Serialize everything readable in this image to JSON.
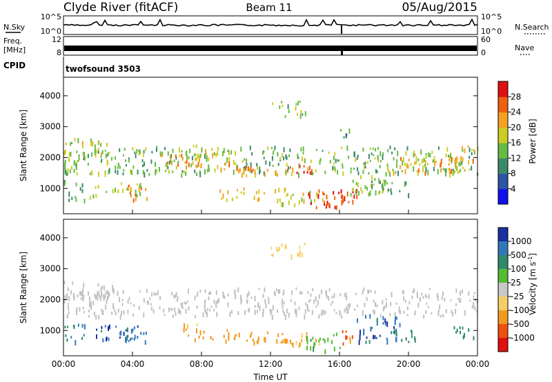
{
  "header": {
    "station": "Clyde River (fitACF)",
    "beam": "Beam 11",
    "date": "05/Aug/2015"
  },
  "strips": {
    "nsky_label": "N.Sky",
    "nsky_ticks": [
      "10^5",
      "10^0"
    ],
    "nsearch_label": "N.Search",
    "nsearch_ticks": [
      "10^5",
      "10^0"
    ],
    "freq_label_1": "Freq.",
    "freq_label_2": "[MHz]",
    "freq_ticks": [
      "12",
      "8"
    ],
    "nave_label": "Nave",
    "nave_ticks": [
      "60",
      "0"
    ],
    "cpid_label": "CPID",
    "cpid_value": "twofsound 3503"
  },
  "colors": {
    "power": [
      "#1010ee",
      "#2c55a8",
      "#3a8a6a",
      "#66bb44",
      "#cccc22",
      "#f5a020",
      "#ee6010",
      "#e01010"
    ],
    "velocity": [
      "#1a2fa0",
      "#3377bb",
      "#2f8a6a",
      "#55bb33",
      "#c8c8c8",
      "#f7cd66",
      "#f29a20",
      "#ee5010",
      "#e01010"
    ],
    "ground": "#c0c0c0"
  },
  "chart_data": [
    {
      "type": "heatmap",
      "panel": "power",
      "xlabel": "",
      "ylabel": "Slant Range [km]",
      "x_ticks": [
        "00:00",
        "04:00",
        "08:00",
        "12:00",
        "16:00",
        "20:00",
        "00:00"
      ],
      "xlim_hours": [
        0,
        24
      ],
      "ylim_km": [
        180,
        4600
      ],
      "y_ticks": [
        1000,
        2000,
        3000,
        4000
      ],
      "colorbar": {
        "label": "Power [dB]",
        "ticks": [
          4,
          8,
          12,
          16,
          20,
          24,
          28
        ],
        "range": [
          0,
          32
        ]
      },
      "bands": [
        {
          "t0": 0.0,
          "t1": 24.0,
          "r0": 1450,
          "r1": 2350,
          "level": 14
        },
        {
          "t0": 0.0,
          "t1": 3.0,
          "r0": 2050,
          "r1": 2600,
          "level": 17
        },
        {
          "t0": 0.0,
          "t1": 1.2,
          "r0": 600,
          "r1": 1250,
          "level": 12
        },
        {
          "t0": 1.5,
          "t1": 4.5,
          "r0": 700,
          "r1": 1150,
          "level": 16
        },
        {
          "t0": 3.2,
          "t1": 4.8,
          "r0": 600,
          "r1": 1100,
          "level": 23
        },
        {
          "t0": 5.5,
          "t1": 8.0,
          "r0": 1700,
          "r1": 2100,
          "level": 24
        },
        {
          "t0": 7.5,
          "t1": 9.0,
          "r0": 1900,
          "r1": 2400,
          "level": 18
        },
        {
          "t0": 9.0,
          "t1": 11.0,
          "r0": 1550,
          "r1": 1850,
          "level": 24
        },
        {
          "t0": 10.0,
          "t1": 12.5,
          "r0": 1400,
          "r1": 1750,
          "level": 20
        },
        {
          "t0": 12.5,
          "t1": 14.5,
          "r0": 1450,
          "r1": 1800,
          "level": 26
        },
        {
          "t0": 9.0,
          "t1": 13.0,
          "r0": 600,
          "r1": 1000,
          "level": 20
        },
        {
          "t0": 12.5,
          "t1": 15.0,
          "r0": 450,
          "r1": 900,
          "level": 18
        },
        {
          "t0": 14.0,
          "t1": 16.5,
          "r0": 280,
          "r1": 950,
          "level": 27
        },
        {
          "t0": 16.0,
          "t1": 17.0,
          "r0": 500,
          "r1": 1000,
          "level": 27
        },
        {
          "t0": 16.5,
          "t1": 19.0,
          "r0": 800,
          "r1": 1400,
          "level": 16
        },
        {
          "t0": 17.5,
          "t1": 20.0,
          "r0": 800,
          "r1": 1300,
          "level": 12
        },
        {
          "t0": 19.0,
          "t1": 24.0,
          "r0": 1500,
          "r1": 2000,
          "level": 22
        },
        {
          "t0": 20.0,
          "t1": 22.0,
          "r0": 1800,
          "r1": 2100,
          "level": 18
        },
        {
          "t0": 23.0,
          "t1": 24.0,
          "r0": 2200,
          "r1": 2500,
          "level": 19
        },
        {
          "t0": 12.0,
          "t1": 14.0,
          "r0": 3300,
          "r1": 3800,
          "level": 15
        },
        {
          "t0": 16.0,
          "t1": 16.6,
          "r0": 2600,
          "r1": 2900,
          "level": 11
        }
      ]
    },
    {
      "type": "heatmap",
      "panel": "velocity",
      "xlabel": "Time UT",
      "ylabel": "Slant Range [km]",
      "x_ticks": [
        "00:00",
        "04:00",
        "08:00",
        "12:00",
        "16:00",
        "20:00",
        "00:00"
      ],
      "xlim_hours": [
        0,
        24
      ],
      "ylim_km": [
        180,
        4600
      ],
      "y_ticks": [
        1000,
        2000,
        3000,
        4000
      ],
      "colorbar": {
        "label": "Velocity [m s^-1]",
        "ticks": [
          "1000",
          "500",
          "100",
          "25",
          "-25",
          "-100",
          "-500",
          "-1000"
        ]
      },
      "bands": [
        {
          "t0": 0.0,
          "t1": 24.0,
          "r0": 1450,
          "r1": 2350,
          "vel": 0
        },
        {
          "t0": 0.0,
          "t1": 3.0,
          "r0": 2050,
          "r1": 2600,
          "vel": 0
        },
        {
          "t0": 0.0,
          "t1": 1.2,
          "r0": 600,
          "r1": 1250,
          "vel": 600
        },
        {
          "t0": 1.5,
          "t1": 4.5,
          "r0": 700,
          "r1": 1150,
          "vel": 900
        },
        {
          "t0": 3.2,
          "t1": 4.8,
          "r0": 600,
          "r1": 1100,
          "vel": 700
        },
        {
          "t0": 6.8,
          "t1": 8.0,
          "r0": 700,
          "r1": 1250,
          "vel": -150
        },
        {
          "t0": 8.0,
          "t1": 10.0,
          "r0": 650,
          "r1": 1000,
          "vel": -350
        },
        {
          "t0": 10.0,
          "t1": 13.0,
          "r0": 600,
          "r1": 950,
          "vel": -250
        },
        {
          "t0": 12.5,
          "t1": 15.0,
          "r0": 450,
          "r1": 900,
          "vel": -120
        },
        {
          "t0": 14.0,
          "t1": 16.0,
          "r0": 280,
          "r1": 900,
          "vel": 80
        },
        {
          "t0": 16.0,
          "t1": 17.0,
          "r0": 500,
          "r1": 1000,
          "vel": -700
        },
        {
          "t0": 17.0,
          "t1": 19.5,
          "r0": 600,
          "r1": 1500,
          "vel": 800
        },
        {
          "t0": 19.0,
          "t1": 20.5,
          "r0": 600,
          "r1": 1000,
          "vel": 300
        },
        {
          "t0": 12.0,
          "t1": 14.0,
          "r0": 3300,
          "r1": 3800,
          "vel": -60
        },
        {
          "t0": 22.5,
          "t1": 24.0,
          "r0": 700,
          "r1": 1100,
          "vel": 200
        }
      ]
    }
  ]
}
